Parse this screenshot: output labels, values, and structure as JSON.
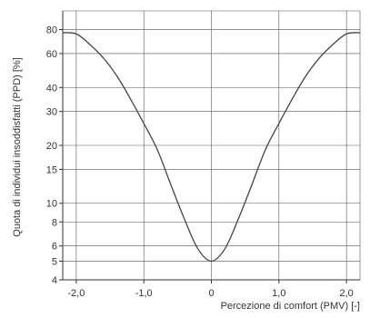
{
  "chart_data": {
    "type": "line",
    "xlabel": "Percezione di comfort (PMV) [-]",
    "ylabel": "Quota di individui insoddisfatti (PPD) [%]",
    "xlim": [
      -2.2,
      2.2
    ],
    "ylim": [
      4,
      100
    ],
    "y_scale": "log",
    "grid": true,
    "x_ticks": [
      -2.0,
      -1.0,
      0,
      1.0,
      2.0
    ],
    "x_tick_labels": [
      "-2,0",
      "-1,0",
      "0",
      "1,0",
      "2,0"
    ],
    "y_ticks": [
      4,
      5,
      6,
      8,
      10,
      15,
      20,
      30,
      40,
      60,
      80
    ],
    "y_tick_labels": [
      "4",
      "5",
      "6",
      "8",
      "10",
      "15",
      "20",
      "30",
      "40",
      "60",
      "80"
    ],
    "series": [
      {
        "x": [
          -2.2,
          -2.0,
          -1.8,
          -1.6,
          -1.4,
          -1.2,
          -1.0,
          -0.8,
          -0.6,
          -0.4,
          -0.2,
          0,
          0.2,
          0.4,
          0.6,
          0.8,
          1.0,
          1.2,
          1.4,
          1.6,
          1.8,
          2.0,
          2.2
        ],
        "y": [
          77,
          76,
          67,
          57,
          46,
          35,
          26,
          19,
          12.5,
          8.3,
          5.8,
          5,
          5.8,
          8.3,
          12.5,
          19,
          26,
          35,
          46,
          57,
          67,
          76,
          77
        ]
      }
    ],
    "colors": {
      "line": "#444444",
      "grid": "#555555",
      "axis": "#333333"
    }
  }
}
